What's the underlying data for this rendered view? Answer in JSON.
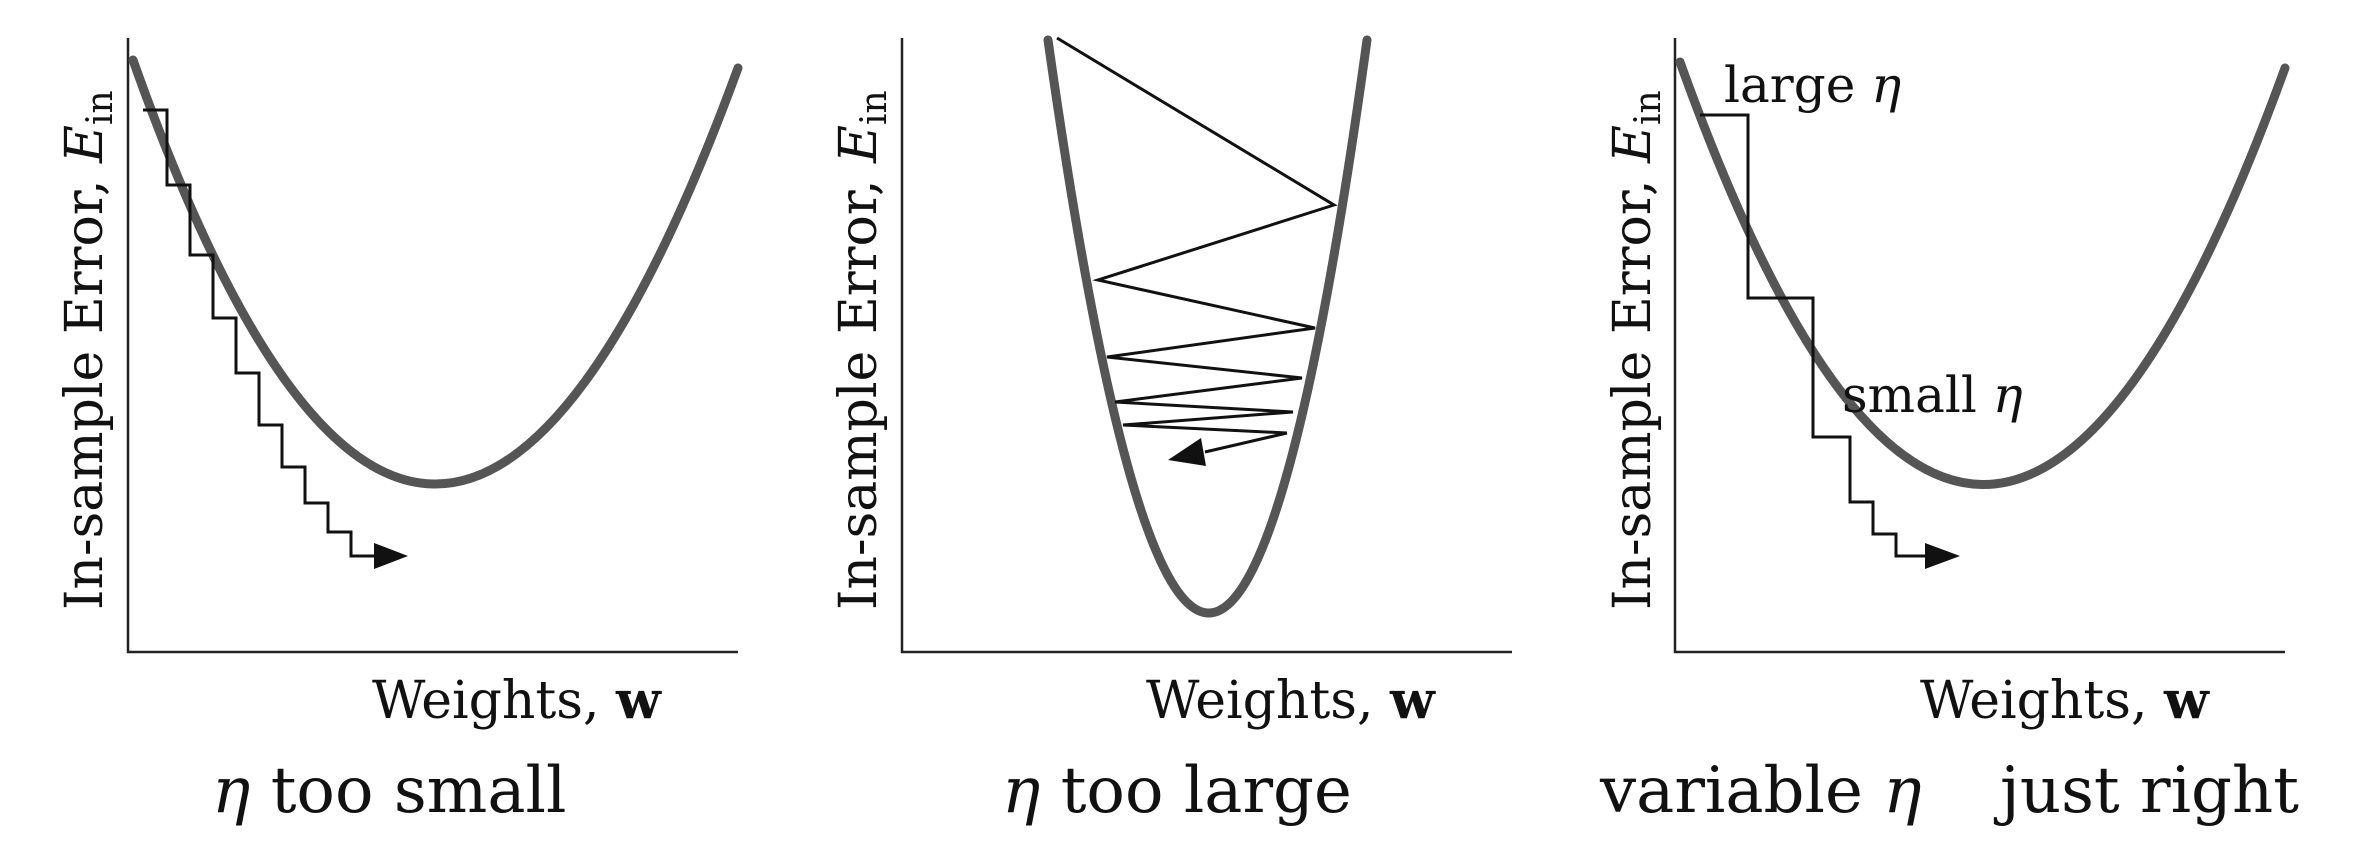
{
  "panels": [
    {
      "id": "small",
      "ylabel_text": "In-sample Error, ",
      "ylabel_var": "E",
      "ylabel_sub": "in",
      "xlabel_text": "Weights, ",
      "xlabel_var": "w",
      "caption_eta": "η",
      "caption_text": " too small"
    },
    {
      "id": "large",
      "ylabel_text": "In-sample Error, ",
      "ylabel_var": "E",
      "ylabel_sub": "in",
      "xlabel_text": "Weights, ",
      "xlabel_var": "w",
      "caption_eta": "η",
      "caption_text": " too large"
    },
    {
      "id": "variable",
      "ylabel_text": "In-sample Error, ",
      "ylabel_var": "E",
      "ylabel_sub": "in",
      "xlabel_text": "Weights, ",
      "xlabel_var": "w",
      "caption_pre": "variable ",
      "caption_eta": "η",
      "caption_post": "just right",
      "annotation_large": "large ",
      "annotation_small": "small ",
      "annotation_eta": "η"
    }
  ]
}
